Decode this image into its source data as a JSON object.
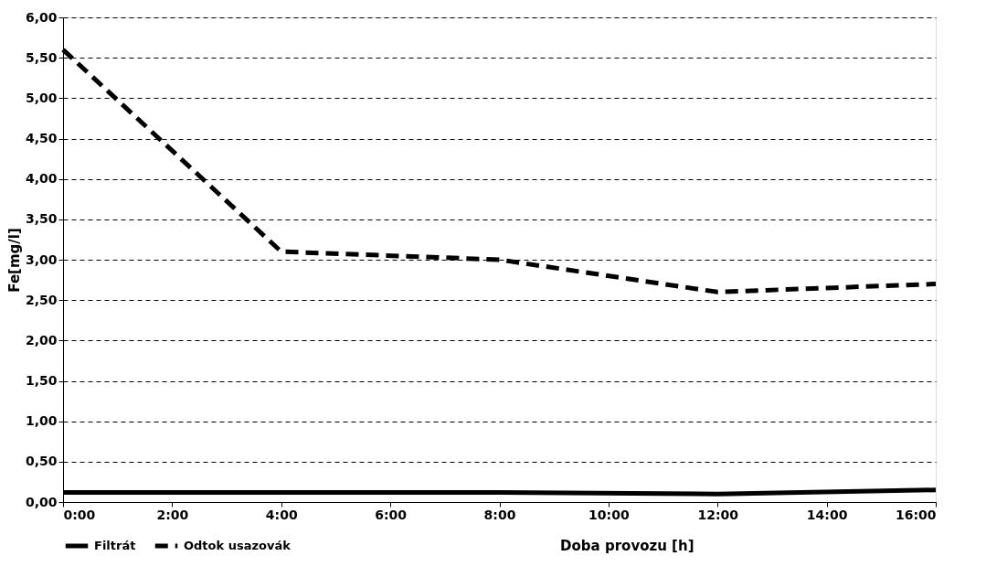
{
  "chart_data": {
    "type": "line",
    "xlabel": "Doba provozu [h]",
    "ylabel": "Fe[mg/l]",
    "x": [
      0,
      4,
      8,
      12,
      16
    ],
    "series": [
      {
        "name": "Filtrát",
        "color": "#000000",
        "line_style": "solid",
        "values": [
          0.12,
          0.12,
          0.12,
          0.1,
          0.15
        ]
      },
      {
        "name": "Odtok usazovák",
        "color": "#000000",
        "line_style": "dashed",
        "values": [
          5.6,
          3.1,
          3.0,
          2.6,
          2.7
        ]
      }
    ],
    "xlim": [
      0,
      16
    ],
    "xticks": [
      {
        "value": 0,
        "label": "0:00"
      },
      {
        "value": 2,
        "label": "2:00"
      },
      {
        "value": 4,
        "label": "4:00"
      },
      {
        "value": 6,
        "label": "6:00"
      },
      {
        "value": 8,
        "label": "8:00"
      },
      {
        "value": 10,
        "label": "10:00"
      },
      {
        "value": 12,
        "label": "12:00"
      },
      {
        "value": 14,
        "label": "14:00"
      },
      {
        "value": 16,
        "label": "16:00"
      }
    ],
    "ylim": [
      0,
      6
    ],
    "yticks": [
      {
        "value": 0,
        "label": "0,00"
      },
      {
        "value": 0.5,
        "label": "0,50"
      },
      {
        "value": 1,
        "label": "1,00"
      },
      {
        "value": 1.5,
        "label": "1,50"
      },
      {
        "value": 2,
        "label": "2,00"
      },
      {
        "value": 2.5,
        "label": "2,50"
      },
      {
        "value": 3,
        "label": "3,00"
      },
      {
        "value": 3.5,
        "label": "3,50"
      },
      {
        "value": 4,
        "label": "4,00"
      },
      {
        "value": 4.5,
        "label": "4,50"
      },
      {
        "value": 5,
        "label": "5,00"
      },
      {
        "value": 5.5,
        "label": "5,50"
      },
      {
        "value": 6,
        "label": "6,00"
      }
    ],
    "grid": "y",
    "legend": "bottom",
    "marker": "none"
  }
}
